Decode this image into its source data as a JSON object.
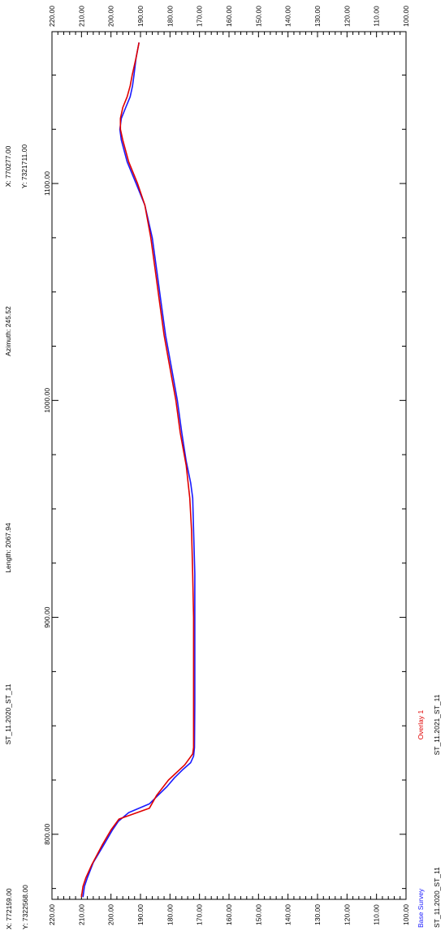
{
  "chart_data": {
    "type": "line",
    "orientation": "rotated-90-ccw",
    "x_range": [
      770,
      1170
    ],
    "y_range": [
      100,
      220
    ],
    "x_ticks": [
      "800.00",
      "900.00",
      "1000.00",
      "1100.00"
    ],
    "y_ticks": [
      "220.00",
      "210.00",
      "200.00",
      "190.00",
      "180.00",
      "170.00",
      "160.00",
      "150.00",
      "140.00",
      "130.00",
      "120.00",
      "110.00",
      "100.00"
    ],
    "grid": false,
    "annotations": {
      "start_x": "X: 772159.00",
      "start_y": "Y: 7322568.00",
      "end_x": "X: 770277.00",
      "end_y": "Y: 7321711.00",
      "length": "Length: 2067.94",
      "azimuth": "Azimuth: 245.52",
      "section_name": "ST_11.2020_ST_11"
    },
    "legend": {
      "placement": "bottom-right",
      "base_label": "Base Survey",
      "base_name": "ST_11.2020_ST_11",
      "overlay_label": "Overlay 1",
      "overlay_name": "ST_11.2021_ST_11"
    },
    "colors": {
      "base": "#1a1aff",
      "overlay": "#e00000",
      "axis": "#000000"
    },
    "series": [
      {
        "name": "Base Survey",
        "color": "#1a1aff",
        "points": [
          [
            771,
            209.5
          ],
          [
            776,
            209
          ],
          [
            780,
            208
          ],
          [
            787,
            206
          ],
          [
            795,
            202.5
          ],
          [
            802,
            199.5
          ],
          [
            806,
            197.5
          ],
          [
            810,
            194
          ],
          [
            812,
            190.5
          ],
          [
            814,
            187
          ],
          [
            818,
            184
          ],
          [
            822,
            181
          ],
          [
            826,
            178.5
          ],
          [
            830,
            175.5
          ],
          [
            833,
            173
          ],
          [
            836,
            172
          ],
          [
            840,
            171.7
          ],
          [
            860,
            171.6
          ],
          [
            880,
            171.6
          ],
          [
            900,
            171.6
          ],
          [
            920,
            171.6
          ],
          [
            940,
            172
          ],
          [
            955,
            172.3
          ],
          [
            962,
            173
          ],
          [
            972,
            174.5
          ],
          [
            985,
            176
          ],
          [
            1000,
            177.5
          ],
          [
            1015,
            179.5
          ],
          [
            1030,
            181.5
          ],
          [
            1045,
            183
          ],
          [
            1060,
            184.5
          ],
          [
            1075,
            186
          ],
          [
            1090,
            188.5
          ],
          [
            1100,
            191.5
          ],
          [
            1110,
            194.5
          ],
          [
            1120,
            196.5
          ],
          [
            1125,
            197
          ],
          [
            1130,
            196.5
          ],
          [
            1135,
            195
          ],
          [
            1140,
            193.5
          ],
          [
            1145,
            192.7
          ],
          [
            1150,
            192.2
          ],
          [
            1158,
            191.5
          ],
          [
            1165,
            190.5
          ]
        ]
      },
      {
        "name": "Overlay 1",
        "color": "#e00000",
        "points": [
          [
            771,
            210
          ],
          [
            776,
            209.5
          ],
          [
            780,
            208.5
          ],
          [
            786,
            206.5
          ],
          [
            795,
            203
          ],
          [
            802,
            200
          ],
          [
            807,
            197.3
          ],
          [
            812,
            187
          ],
          [
            818,
            184.5
          ],
          [
            825,
            180.5
          ],
          [
            832,
            175
          ],
          [
            837,
            172.3
          ],
          [
            840,
            172
          ],
          [
            860,
            172
          ],
          [
            880,
            172
          ],
          [
            900,
            172
          ],
          [
            920,
            172.3
          ],
          [
            940,
            172.7
          ],
          [
            955,
            173.3
          ],
          [
            970,
            174.5
          ],
          [
            985,
            176.5
          ],
          [
            1000,
            178
          ],
          [
            1015,
            180
          ],
          [
            1030,
            182
          ],
          [
            1045,
            183.5
          ],
          [
            1060,
            185
          ],
          [
            1075,
            186.5
          ],
          [
            1090,
            188.5
          ],
          [
            1100,
            191
          ],
          [
            1110,
            194
          ],
          [
            1120,
            196
          ],
          [
            1125,
            196.8
          ],
          [
            1130,
            196.8
          ],
          [
            1135,
            196
          ],
          [
            1140,
            194.5
          ],
          [
            1145,
            193.5
          ],
          [
            1150,
            192.8
          ],
          [
            1158,
            191.5
          ],
          [
            1165,
            190.5
          ]
        ]
      }
    ]
  }
}
